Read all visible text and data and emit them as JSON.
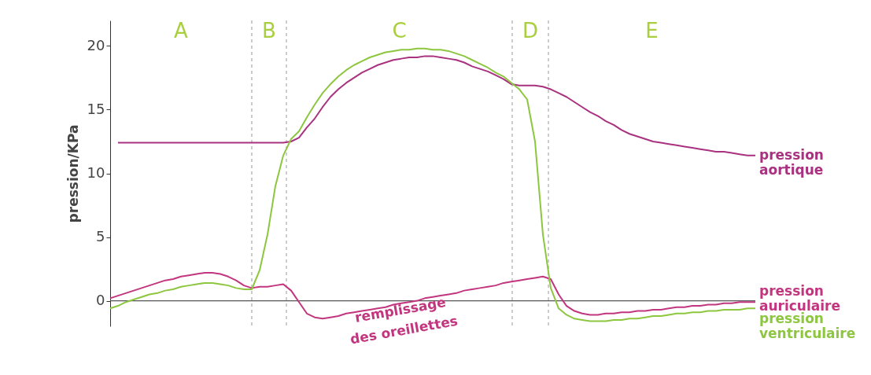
{
  "chart_data": {
    "type": "line",
    "ylabel": "pression/KPa",
    "categories": [
      null,
      null,
      null,
      null,
      null,
      null,
      null,
      null,
      null,
      null,
      null,
      null,
      null,
      null,
      null,
      null,
      null,
      null,
      null,
      null,
      null,
      null,
      null,
      null,
      null,
      null,
      null,
      null,
      null,
      null,
      null,
      null,
      null,
      null,
      null,
      null,
      null,
      null,
      null,
      null,
      null,
      null,
      null,
      null,
      null,
      null,
      null,
      null,
      null,
      null,
      null,
      null,
      null,
      null,
      null,
      null,
      null,
      null,
      null,
      null,
      null,
      null,
      null,
      null,
      null,
      null,
      null,
      null,
      null,
      null,
      null,
      null,
      null,
      null,
      null,
      null,
      null,
      null,
      null,
      null,
      null,
      null,
      null
    ],
    "series": [
      {
        "name": "pression aortique",
        "color": "#a8327f",
        "values": [
          null,
          12.4,
          12.4,
          12.4,
          12.4,
          12.4,
          12.4,
          12.4,
          12.4,
          12.4,
          12.4,
          12.4,
          12.4,
          12.4,
          12.4,
          12.4,
          12.4,
          12.4,
          12.4,
          12.4,
          12.4,
          12.4,
          12.4,
          12.5,
          12.8,
          13.6,
          14.3,
          15.2,
          16.0,
          16.6,
          17.1,
          17.5,
          17.9,
          18.2,
          18.5,
          18.7,
          18.9,
          19.0,
          19.1,
          19.1,
          19.2,
          19.2,
          19.1,
          19.0,
          18.9,
          18.7,
          18.4,
          18.2,
          18.0,
          17.7,
          17.4,
          17.0,
          16.9,
          16.9,
          16.9,
          16.8,
          16.6,
          16.3,
          16.0,
          15.6,
          15.2,
          14.8,
          14.5,
          14.1,
          13.8,
          13.4,
          13.1,
          12.9,
          12.7,
          12.5,
          12.4,
          12.3,
          12.2,
          12.1,
          12.0,
          11.9,
          11.8,
          11.7,
          11.7,
          11.6,
          11.5,
          11.4,
          11.4
        ]
      },
      {
        "name": "pression auriculaire",
        "color": "#c2367f",
        "values": [
          0.2,
          0.4,
          0.6,
          0.8,
          1.0,
          1.2,
          1.4,
          1.6,
          1.7,
          1.9,
          2.0,
          2.1,
          2.2,
          2.2,
          2.1,
          1.9,
          1.6,
          1.2,
          1.0,
          1.1,
          1.1,
          1.2,
          1.3,
          0.8,
          -0.1,
          -1.0,
          -1.3,
          -1.4,
          -1.3,
          -1.2,
          -1.0,
          -0.9,
          -0.8,
          -0.7,
          -0.6,
          -0.5,
          -0.3,
          -0.2,
          -0.1,
          0.0,
          0.2,
          0.3,
          0.4,
          0.5,
          0.6,
          0.8,
          0.9,
          1.0,
          1.1,
          1.2,
          1.4,
          1.5,
          1.6,
          1.7,
          1.8,
          1.9,
          1.7,
          0.5,
          -0.4,
          -0.8,
          -1.0,
          -1.1,
          -1.1,
          -1.0,
          -1.0,
          -0.9,
          -0.9,
          -0.8,
          -0.8,
          -0.7,
          -0.7,
          -0.6,
          -0.5,
          -0.5,
          -0.4,
          -0.4,
          -0.3,
          -0.3,
          -0.2,
          -0.2,
          -0.1,
          -0.1,
          -0.1
        ]
      },
      {
        "name": "pression ventriculaire",
        "color": "#8dc63f",
        "values": [
          -0.6,
          -0.4,
          -0.1,
          0.1,
          0.3,
          0.5,
          0.6,
          0.8,
          0.9,
          1.1,
          1.2,
          1.3,
          1.4,
          1.4,
          1.3,
          1.2,
          1.0,
          0.9,
          0.9,
          2.4,
          5.2,
          9.0,
          11.4,
          12.7,
          13.3,
          14.4,
          15.4,
          16.3,
          17.0,
          17.6,
          18.1,
          18.5,
          18.8,
          19.1,
          19.3,
          19.5,
          19.6,
          19.7,
          19.7,
          19.8,
          19.8,
          19.7,
          19.7,
          19.6,
          19.4,
          19.2,
          18.9,
          18.6,
          18.3,
          17.9,
          17.6,
          17.1,
          16.6,
          15.8,
          12.5,
          5.2,
          1.0,
          -0.6,
          -1.1,
          -1.4,
          -1.5,
          -1.6,
          -1.6,
          -1.6,
          -1.5,
          -1.5,
          -1.4,
          -1.4,
          -1.3,
          -1.2,
          -1.2,
          -1.1,
          -1.0,
          -1.0,
          -0.9,
          -0.9,
          -0.8,
          -0.8,
          -0.7,
          -0.7,
          -0.7,
          -0.6,
          -0.6
        ]
      }
    ],
    "ylim": [
      -2,
      22
    ],
    "yticks": [
      0,
      5,
      10,
      15,
      20
    ],
    "tick_labels": "y",
    "grid": false,
    "legend": false,
    "ref_lines": [
      {
        "axis": "y",
        "value": 0,
        "color": "#555555",
        "line_style": "solid"
      }
    ],
    "annotations": [
      "A",
      "B",
      "C",
      "D",
      "E",
      "remplissage des oreillettes"
    ]
  }
}
